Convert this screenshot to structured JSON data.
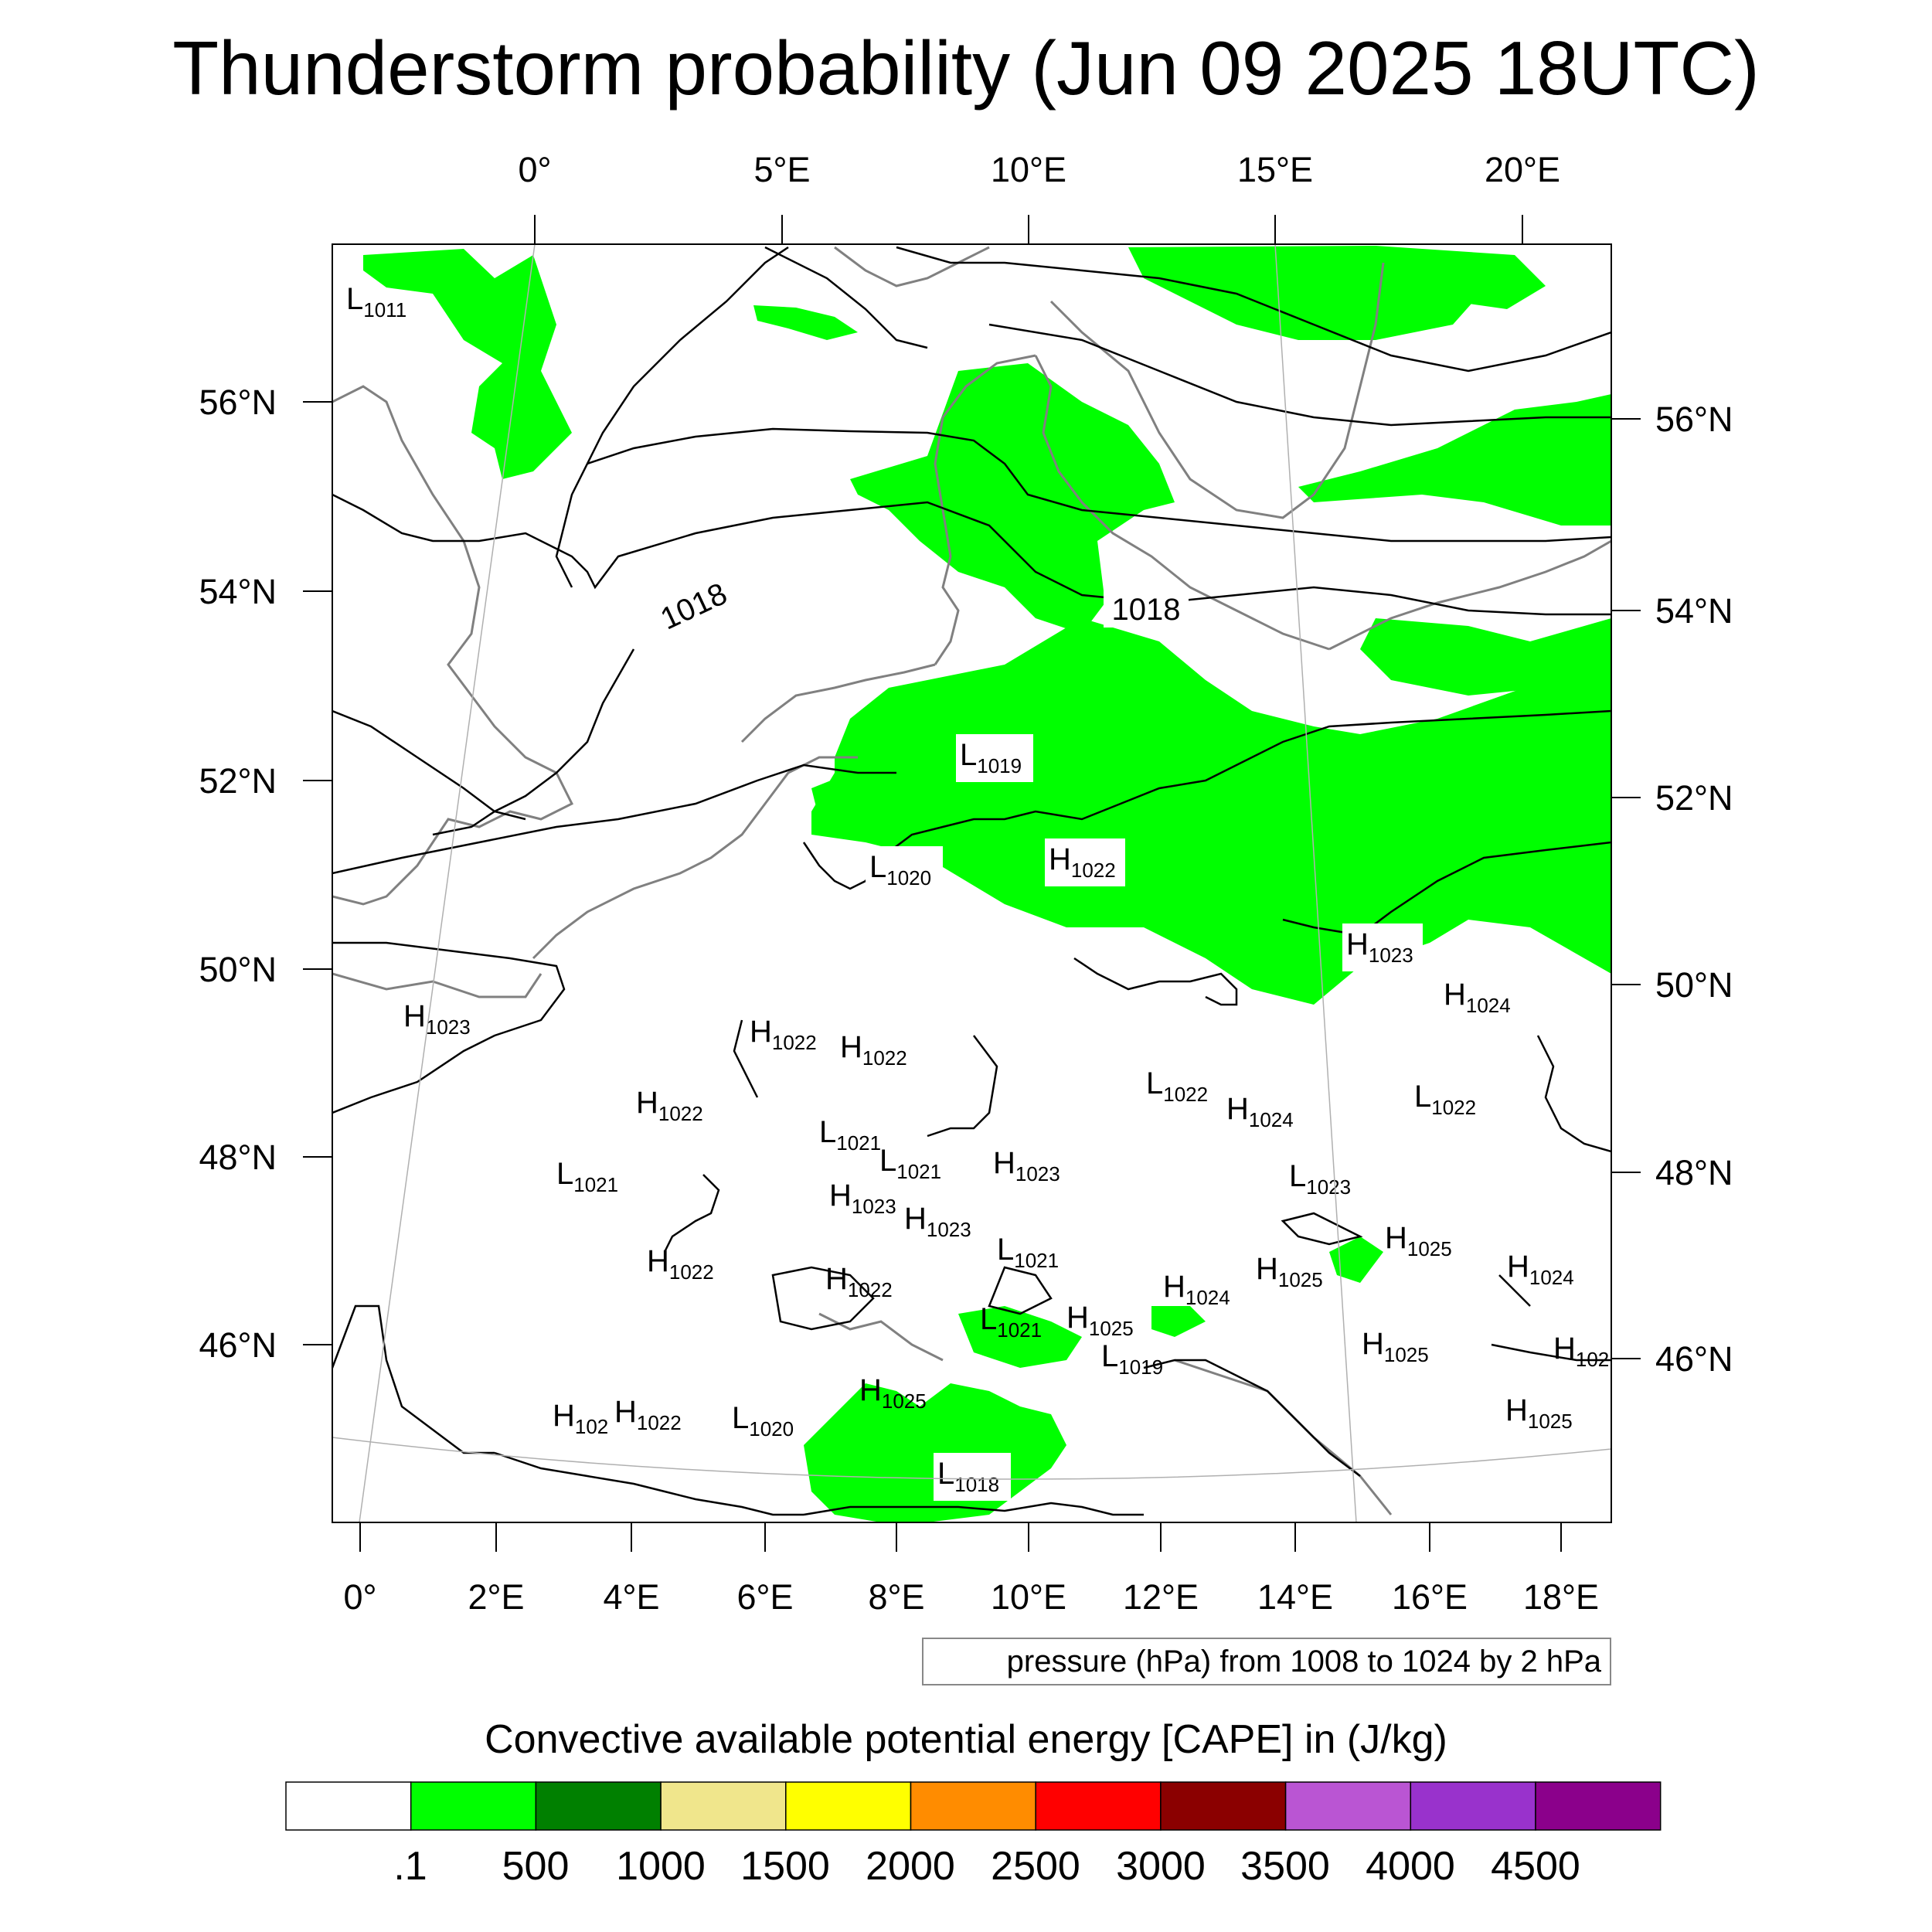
{
  "title": "Thunderstorm probability (Jun 09 2025 18UTC)",
  "pressure_note": "pressure (hPa) from 1008 to 1024 by 2 hPa",
  "colorbar_title": "Convective available potential energy [CAPE] in (J/kg)",
  "top_lon_labels": [
    "0°",
    "5°E",
    "10°E",
    "15°E",
    "20°E"
  ],
  "bottom_lon_labels": [
    "0°",
    "2°E",
    "4°E",
    "6°E",
    "8°E",
    "10°E",
    "12°E",
    "14°E",
    "16°E",
    "18°E"
  ],
  "left_lat_labels": [
    "56°N",
    "54°N",
    "52°N",
    "50°N",
    "48°N",
    "46°N"
  ],
  "right_lat_labels": [
    "56°N",
    "54°N",
    "52°N",
    "50°N",
    "48°N",
    "46°N"
  ],
  "isobar_labels": [
    "1018",
    "1018"
  ],
  "pressure_centers": [
    {
      "type": "L",
      "value": "1011"
    },
    {
      "type": "L",
      "value": "1019"
    },
    {
      "type": "L",
      "value": "1020"
    },
    {
      "type": "H",
      "value": "1022"
    },
    {
      "type": "H",
      "value": "1023"
    },
    {
      "type": "H",
      "value": "1024"
    },
    {
      "type": "H",
      "value": "1023"
    },
    {
      "type": "H",
      "value": "1022"
    },
    {
      "type": "H",
      "value": "1022"
    },
    {
      "type": "H",
      "value": "1022"
    },
    {
      "type": "L",
      "value": "1022"
    },
    {
      "type": "H",
      "value": "1024"
    },
    {
      "type": "L",
      "value": "1022"
    },
    {
      "type": "L",
      "value": "1021"
    },
    {
      "type": "L",
      "value": "1021"
    },
    {
      "type": "L",
      "value": "1021"
    },
    {
      "type": "H",
      "value": "1023"
    },
    {
      "type": "L",
      "value": "1023"
    },
    {
      "type": "H",
      "value": "1023"
    },
    {
      "type": "H",
      "value": "1023"
    },
    {
      "type": "H",
      "value": "1022"
    },
    {
      "type": "L",
      "value": "1021"
    },
    {
      "type": "H",
      "value": "1025"
    },
    {
      "type": "H",
      "value": "1024"
    },
    {
      "type": "H",
      "value": "1022"
    },
    {
      "type": "H",
      "value": "1025"
    },
    {
      "type": "H",
      "value": "1024"
    },
    {
      "type": "L",
      "value": "1021"
    },
    {
      "type": "H",
      "value": "1025"
    },
    {
      "type": "H",
      "value": "1025"
    },
    {
      "type": "L",
      "value": "1019"
    },
    {
      "type": "H",
      "value": "102"
    },
    {
      "type": "H",
      "value": "1022"
    },
    {
      "type": "H",
      "value": "102"
    },
    {
      "type": "L",
      "value": "1020"
    },
    {
      "type": "H",
      "value": "1025"
    },
    {
      "type": "H",
      "value": "1025"
    },
    {
      "type": "L",
      "value": "1018"
    }
  ],
  "colorbar": {
    "labels": [
      ".1",
      "500",
      "1000",
      "1500",
      "2000",
      "2500",
      "3000",
      "3500",
      "4000",
      "4500"
    ],
    "colors": [
      "#ffffff",
      "#00ff00",
      "#008000",
      "#f0e68c",
      "#ffff00",
      "#ff8c00",
      "#ff0000",
      "#8b0000",
      "#ba55d3",
      "#9932cc",
      "#8b008b"
    ]
  },
  "colors": {
    "cape_green": "#00ff00",
    "coastline": "#808080",
    "isobar": "#000000"
  }
}
